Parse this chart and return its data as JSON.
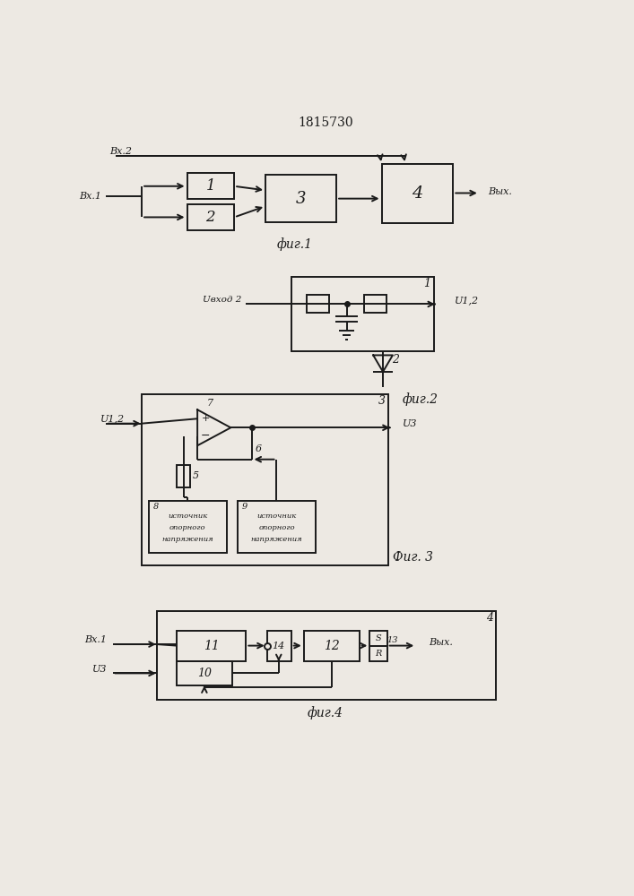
{
  "title": "1815730",
  "bg_color": "#ede9e3",
  "line_color": "#1a1a1a",
  "fig1_label": "фиг.1",
  "fig2_label": "фиг.2",
  "fig3_label": "Фиг. 3",
  "fig4_label": "фиг.4",
  "vx2": "Вх.2",
  "vx1": "Вх.1",
  "vyx": "Вых.",
  "uvhod2": "Uвход 2",
  "u12": "U1,2",
  "u12b": "U1,2",
  "u3": "U3",
  "src_text": [
    "источник",
    "опорного",
    "напряжения"
  ],
  "vyx_dot": "Вых."
}
